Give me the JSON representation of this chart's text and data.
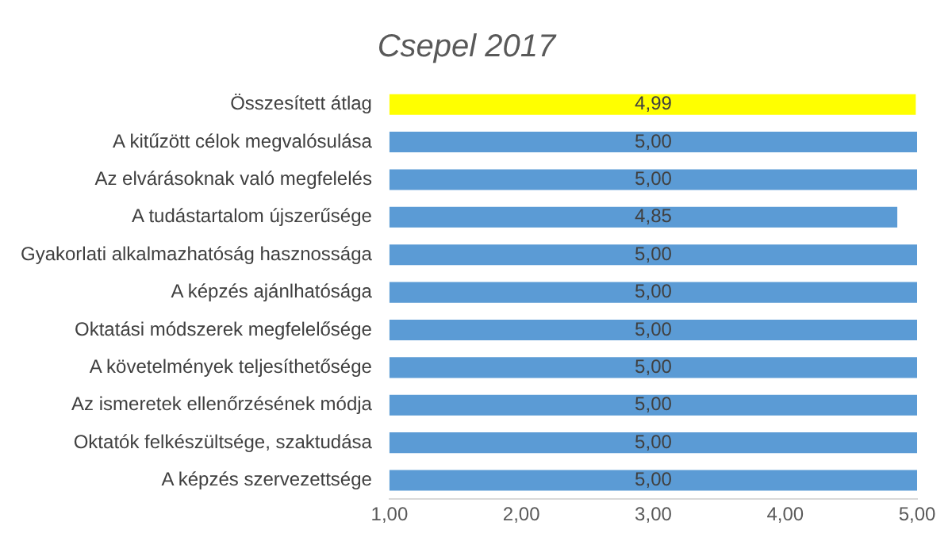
{
  "chart_data": {
    "type": "bar",
    "orientation": "horizontal",
    "title": "Csepel 2017",
    "categories": [
      "Összesített átlag",
      "A kitűzött célok megvalósulása",
      "Az elvárásoknak való megfelelés",
      "A tudástartalom újszerűsége",
      "Gyakorlati alkalmazhatóság hasznossága",
      "A képzés ajánlhatósága",
      "Oktatási módszerek megfelelősége",
      "A követelmények teljesíthetősége",
      "Az ismeretek ellenőrzésének módja",
      "Oktatók felkészültsége, szaktudása",
      "A képzés szervezettsége"
    ],
    "values": [
      4.99,
      5,
      5,
      4.85,
      5,
      5,
      5,
      5,
      5,
      5,
      5
    ],
    "colors": [
      "#ffff00",
      "#5b9bd5",
      "#5b9bd5",
      "#5b9bd5",
      "#5b9bd5",
      "#5b9bd5",
      "#5b9bd5",
      "#5b9bd5",
      "#5b9bd5",
      "#5b9bd5",
      "#5b9bd5"
    ],
    "value_labels": [
      "4,99",
      "5,00",
      "5,00",
      "4,85",
      "5,00",
      "5,00",
      "5,00",
      "5,00",
      "5,00",
      "5,00",
      "5,00"
    ],
    "xlim": [
      1,
      5
    ],
    "xticks": [
      {
        "value": 1,
        "label": "1,00"
      },
      {
        "value": 2,
        "label": "2,00"
      },
      {
        "value": 3,
        "label": "3,00"
      },
      {
        "value": 4,
        "label": "4,00"
      },
      {
        "value": 5,
        "label": "5,00"
      }
    ]
  }
}
